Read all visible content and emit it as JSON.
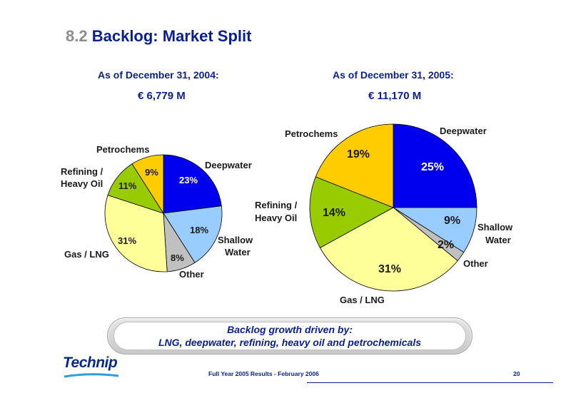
{
  "title": {
    "number": "8.2",
    "text": "Backlog: Market Split"
  },
  "colors": {
    "deepwater": "#0000ee",
    "shallow_water": "#99ccff",
    "other": "#c0c0c0",
    "gas_lng": "#ffff99",
    "refining_heavy_oil": "#99cc00",
    "petrochems": "#ffcc00"
  },
  "chart_data": [
    {
      "type": "pie",
      "title": "As of December 31, 2004:",
      "subtitle": "€ 6,779 M",
      "categories": [
        "Deepwater",
        "Shallow Water",
        "Other",
        "Gas / LNG",
        "Refining / Heavy Oil",
        "Petrochems"
      ],
      "values": [
        23,
        18,
        8,
        31,
        11,
        9
      ],
      "value_labels": [
        "23%",
        "18%",
        "8%",
        "31%",
        "11%",
        "9%"
      ],
      "legend": "labels-around"
    },
    {
      "type": "pie",
      "title": "As of December 31, 2005:",
      "subtitle": "€ 11,170 M",
      "categories": [
        "Deepwater",
        "Shallow Water",
        "Other",
        "Gas / LNG",
        "Refining / Heavy Oil",
        "Petrochems"
      ],
      "values": [
        25,
        9,
        2,
        31,
        14,
        19
      ],
      "value_labels": [
        "25%",
        "9%",
        "2%",
        "31%",
        "14%",
        "19%"
      ],
      "legend": "labels-around"
    }
  ],
  "labels": {
    "deepwater": "Deepwater",
    "shallow1": "Shallow",
    "shallow2": "Water",
    "other": "Other",
    "gas": "Gas / LNG",
    "refining1": "Refining /",
    "refining2": "Heavy Oil",
    "petrochems": "Petrochems"
  },
  "banner": {
    "line1": "Backlog growth driven by:",
    "line2": "LNG, deepwater, refining, heavy oil and petrochemicals"
  },
  "footer": {
    "logo": "Technip",
    "text": "Full Year 2005 Results  -  February 2006",
    "page": "20"
  }
}
